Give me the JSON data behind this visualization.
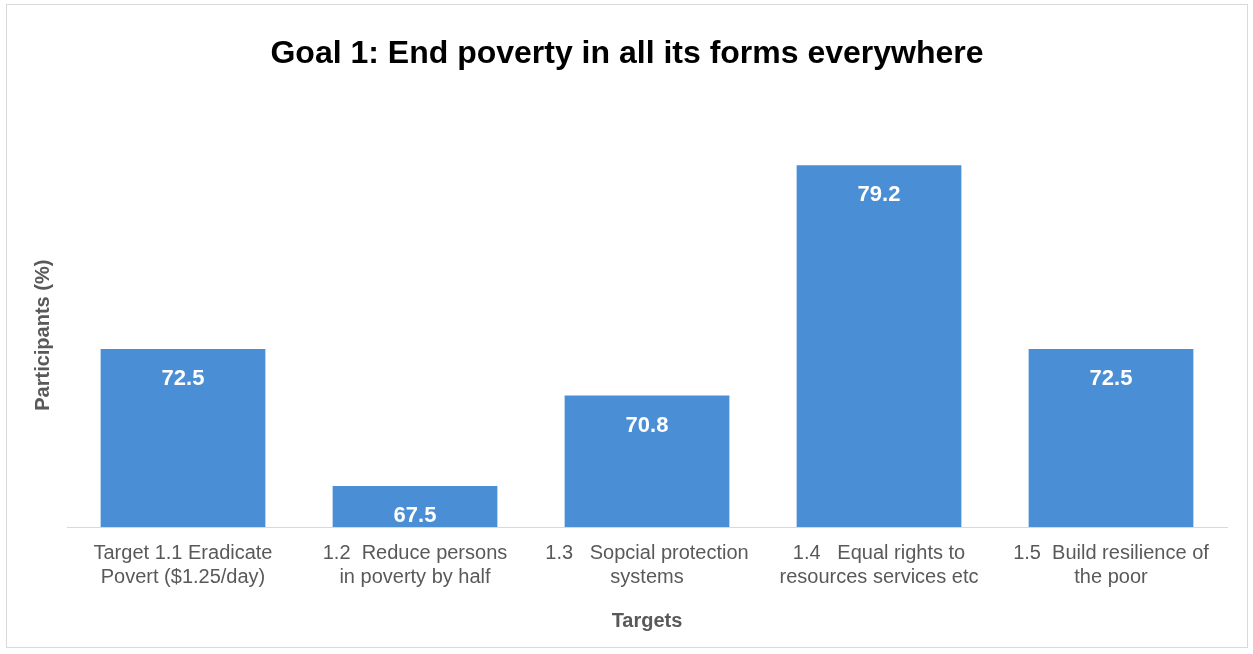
{
  "chart_data": {
    "type": "bar",
    "title": "Goal 1: End poverty in all its forms everywhere",
    "xlabel": "Targets",
    "ylabel": "Participants (%)",
    "categories": [
      "Target 1.1 Eradicate Povert ($1.25/day)",
      "1.2  Reduce persons in poverty by half",
      "1.3   Sopcial protection systems",
      "1.4   Equal rights to resources services etc",
      "1.5  Build resilience of the poor"
    ],
    "values": [
      72.5,
      67.5,
      70.8,
      79.2,
      72.5
    ],
    "color": "#4a8fd6",
    "data_labels": true,
    "grid": false,
    "legend": false,
    "tick_labels": "x"
  }
}
